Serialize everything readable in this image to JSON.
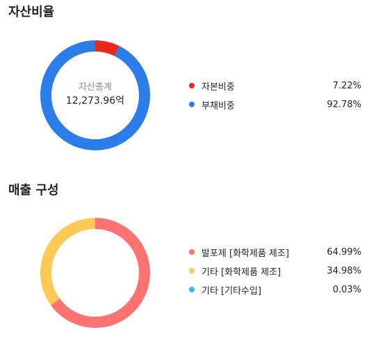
{
  "sections": {
    "asset": {
      "title": "자산비율",
      "center_title": "자산총계",
      "center_value": "12,273.96억"
    },
    "sales": {
      "title": "매출 구성"
    }
  },
  "chart_data": [
    {
      "type": "pie",
      "title": "자산비율",
      "donut": true,
      "center_text": [
        "자산총계",
        "12,273.96억"
      ],
      "categories": [
        "자본비중",
        "부채비중"
      ],
      "values": [
        7.22,
        92.78
      ],
      "value_labels": [
        "7.22%",
        "92.78%"
      ],
      "colors": [
        "#e8291c",
        "#2b7de9"
      ],
      "legend": "right"
    },
    {
      "type": "pie",
      "title": "매출 구성",
      "donut": true,
      "categories": [
        "발포제 [화학제품 제조]",
        "기타 [화학제품 제조]",
        "기타 [기타수입]"
      ],
      "values": [
        64.99,
        34.98,
        0.03
      ],
      "value_labels": [
        "64.99%",
        "34.98%",
        "0.03%"
      ],
      "colors": [
        "#ff7272",
        "#ffc955",
        "#3db8e5"
      ],
      "legend": "right"
    }
  ]
}
